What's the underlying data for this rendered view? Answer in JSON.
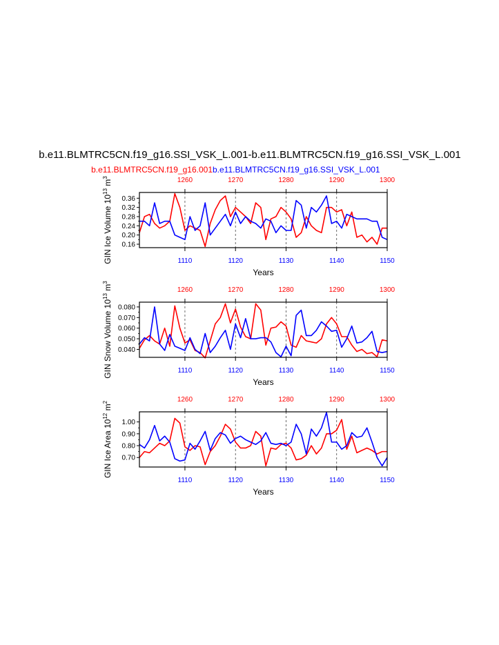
{
  "title": "b.e11.BLMTRC5CN.f19_g16.SSI_VSK_L.001-b.e11.BLMTRC5CN.f19_g16.SSI_VSK_L.001",
  "case_red": "b.e11.BLMTRC5CN.f19_g16.001",
  "case_blue": "b.e11.BLMTRC5CN.f19_g16.SSI_VSK_L.001",
  "colors": {
    "red": "#ff0000",
    "blue": "#0000ff",
    "axis": "#000000"
  },
  "chart_data": [
    {
      "type": "line",
      "ylabel": "GIN Ice Volume 10",
      "ylabel_exp": "13",
      "ylabel_unit": " m",
      "ylabel_unit_exp": "3",
      "xlabel": "Years",
      "xlim_bottom": [
        1101,
        1150
      ],
      "xlim_top": [
        1251,
        1300
      ],
      "ylim": [
        0.145,
        0.385
      ],
      "yticks": [
        0.16,
        0.2,
        0.24,
        0.28,
        0.32,
        0.36
      ],
      "ytick_labels": [
        "0.16",
        "0.20",
        "0.24",
        "0.28",
        "0.32",
        "0.36"
      ],
      "xticks_bottom": [
        "1110",
        "1120",
        "1130",
        "1140",
        "1150"
      ],
      "xticks_top": [
        "1260",
        "1270",
        "1280",
        "1290",
        "1300"
      ],
      "series": [
        {
          "color": "red",
          "x": [
            1101,
            1102,
            1103,
            1104,
            1105,
            1106,
            1107,
            1108,
            1109,
            1110,
            1111,
            1112,
            1113,
            1114,
            1115,
            1116,
            1117,
            1118,
            1119,
            1120,
            1121,
            1122,
            1123,
            1124,
            1125,
            1126,
            1127,
            1128,
            1129,
            1130,
            1131,
            1132,
            1133,
            1134,
            1135,
            1136,
            1137,
            1138,
            1139,
            1140,
            1141,
            1142,
            1143,
            1144,
            1145,
            1146,
            1147,
            1148,
            1149,
            1150
          ],
          "values": [
            0.21,
            0.28,
            0.29,
            0.25,
            0.23,
            0.24,
            0.26,
            0.38,
            0.32,
            0.22,
            0.24,
            0.23,
            0.22,
            0.15,
            0.25,
            0.31,
            0.35,
            0.37,
            0.28,
            0.32,
            0.3,
            0.28,
            0.25,
            0.34,
            0.32,
            0.18,
            0.27,
            0.28,
            0.32,
            0.3,
            0.27,
            0.19,
            0.21,
            0.28,
            0.24,
            0.22,
            0.21,
            0.32,
            0.32,
            0.3,
            0.31,
            0.24,
            0.3,
            0.19,
            0.2,
            0.17,
            0.19,
            0.16,
            0.23,
            0.23
          ]
        },
        {
          "color": "blue",
          "x": [
            1101,
            1102,
            1103,
            1104,
            1105,
            1106,
            1107,
            1108,
            1109,
            1110,
            1111,
            1112,
            1113,
            1114,
            1115,
            1116,
            1117,
            1118,
            1119,
            1120,
            1121,
            1122,
            1123,
            1124,
            1125,
            1126,
            1127,
            1128,
            1129,
            1130,
            1131,
            1132,
            1133,
            1134,
            1135,
            1136,
            1137,
            1138,
            1139,
            1140,
            1141,
            1142,
            1143,
            1144,
            1145,
            1146,
            1147,
            1148,
            1149,
            1150
          ],
          "values": [
            0.26,
            0.26,
            0.24,
            0.34,
            0.25,
            0.26,
            0.26,
            0.2,
            0.19,
            0.18,
            0.28,
            0.22,
            0.24,
            0.34,
            0.2,
            0.23,
            0.26,
            0.29,
            0.24,
            0.3,
            0.25,
            0.28,
            0.26,
            0.25,
            0.23,
            0.27,
            0.26,
            0.21,
            0.24,
            0.22,
            0.22,
            0.35,
            0.33,
            0.23,
            0.32,
            0.3,
            0.33,
            0.37,
            0.25,
            0.26,
            0.23,
            0.29,
            0.28,
            0.27,
            0.27,
            0.27,
            0.26,
            0.26,
            0.19,
            0.18
          ]
        }
      ]
    },
    {
      "type": "line",
      "ylabel": "GIN Snow Volume 10",
      "ylabel_exp": "13",
      "ylabel_unit": " m",
      "ylabel_unit_exp": "3",
      "xlabel": "Years",
      "xlim_bottom": [
        1101,
        1150
      ],
      "xlim_top": [
        1251,
        1300
      ],
      "ylim": [
        0.0325,
        0.0845
      ],
      "yticks": [
        0.04,
        0.05,
        0.06,
        0.07,
        0.08
      ],
      "ytick_labels": [
        "0.040",
        "0.050",
        "0.060",
        "0.070",
        "0.080"
      ],
      "xticks_bottom": [
        "1110",
        "1120",
        "1130",
        "1140",
        "1150"
      ],
      "xticks_top": [
        "1260",
        "1270",
        "1280",
        "1290",
        "1300"
      ],
      "series": [
        {
          "color": "red",
          "x": [
            1101,
            1102,
            1103,
            1104,
            1105,
            1106,
            1107,
            1108,
            1109,
            1110,
            1111,
            1112,
            1113,
            1114,
            1115,
            1116,
            1117,
            1118,
            1119,
            1120,
            1121,
            1122,
            1123,
            1124,
            1125,
            1126,
            1127,
            1128,
            1129,
            1130,
            1131,
            1132,
            1133,
            1134,
            1135,
            1136,
            1137,
            1138,
            1139,
            1140,
            1141,
            1142,
            1143,
            1144,
            1145,
            1146,
            1147,
            1148,
            1149,
            1150
          ],
          "values": [
            0.041,
            0.049,
            0.053,
            0.048,
            0.045,
            0.06,
            0.043,
            0.081,
            0.06,
            0.046,
            0.049,
            0.039,
            0.037,
            0.032,
            0.048,
            0.064,
            0.07,
            0.083,
            0.065,
            0.078,
            0.061,
            0.052,
            0.05,
            0.083,
            0.077,
            0.044,
            0.06,
            0.061,
            0.066,
            0.062,
            0.044,
            0.042,
            0.053,
            0.048,
            0.047,
            0.046,
            0.05,
            0.064,
            0.07,
            0.064,
            0.052,
            0.052,
            0.044,
            0.038,
            0.04,
            0.036,
            0.037,
            0.033,
            0.049,
            0.048
          ]
        },
        {
          "color": "blue",
          "x": [
            1101,
            1102,
            1103,
            1104,
            1105,
            1106,
            1107,
            1108,
            1109,
            1110,
            1111,
            1112,
            1113,
            1114,
            1115,
            1116,
            1117,
            1118,
            1119,
            1120,
            1121,
            1122,
            1123,
            1124,
            1125,
            1126,
            1127,
            1128,
            1129,
            1130,
            1131,
            1132,
            1133,
            1134,
            1135,
            1136,
            1137,
            1138,
            1139,
            1140,
            1141,
            1142,
            1143,
            1144,
            1145,
            1146,
            1147,
            1148,
            1149,
            1150
          ],
          "values": [
            0.045,
            0.051,
            0.048,
            0.08,
            0.045,
            0.039,
            0.054,
            0.043,
            0.041,
            0.039,
            0.051,
            0.04,
            0.036,
            0.055,
            0.037,
            0.043,
            0.051,
            0.058,
            0.04,
            0.064,
            0.051,
            0.069,
            0.05,
            0.05,
            0.051,
            0.051,
            0.047,
            0.037,
            0.033,
            0.043,
            0.034,
            0.072,
            0.077,
            0.053,
            0.053,
            0.058,
            0.066,
            0.062,
            0.057,
            0.058,
            0.042,
            0.05,
            0.062,
            0.046,
            0.047,
            0.051,
            0.057,
            0.038,
            0.037,
            0.038
          ]
        }
      ]
    },
    {
      "type": "line",
      "ylabel": "GIN Ice Area 10",
      "ylabel_exp": "12",
      "ylabel_unit": " m",
      "ylabel_unit_exp": "2",
      "xlabel": "Years",
      "xlim_bottom": [
        1101,
        1150
      ],
      "xlim_top": [
        1251,
        1300
      ],
      "ylim": [
        0.62,
        1.085
      ],
      "yticks": [
        0.7,
        0.8,
        0.9,
        1.0
      ],
      "ytick_labels": [
        "0.70",
        "0.80",
        "0.90",
        "1.00"
      ],
      "xticks_bottom": [
        "1110",
        "1120",
        "1130",
        "1140",
        "1150"
      ],
      "xticks_top": [
        "1260",
        "1270",
        "1280",
        "1290",
        "1300"
      ],
      "series": [
        {
          "color": "red",
          "x": [
            1101,
            1102,
            1103,
            1104,
            1105,
            1106,
            1107,
            1108,
            1109,
            1110,
            1111,
            1112,
            1113,
            1114,
            1115,
            1116,
            1117,
            1118,
            1119,
            1120,
            1121,
            1122,
            1123,
            1124,
            1125,
            1126,
            1127,
            1128,
            1129,
            1130,
            1131,
            1132,
            1133,
            1134,
            1135,
            1136,
            1137,
            1138,
            1139,
            1140,
            1141,
            1142,
            1143,
            1144,
            1145,
            1146,
            1147,
            1148,
            1149,
            1150
          ],
          "values": [
            0.7,
            0.75,
            0.74,
            0.78,
            0.82,
            0.8,
            0.84,
            1.03,
            0.99,
            0.79,
            0.76,
            0.8,
            0.79,
            0.64,
            0.75,
            0.8,
            0.88,
            0.98,
            0.94,
            0.83,
            0.78,
            0.78,
            0.8,
            0.92,
            0.88,
            0.63,
            0.78,
            0.77,
            0.81,
            0.82,
            0.78,
            0.68,
            0.69,
            0.72,
            0.8,
            0.73,
            0.78,
            0.9,
            0.9,
            0.93,
            1.02,
            0.77,
            0.88,
            0.74,
            0.76,
            0.78,
            0.76,
            0.73,
            0.75,
            0.75
          ]
        },
        {
          "color": "blue",
          "x": [
            1101,
            1102,
            1103,
            1104,
            1105,
            1106,
            1107,
            1108,
            1109,
            1110,
            1111,
            1112,
            1113,
            1114,
            1115,
            1116,
            1117,
            1118,
            1119,
            1120,
            1121,
            1122,
            1123,
            1124,
            1125,
            1126,
            1127,
            1128,
            1129,
            1130,
            1131,
            1132,
            1133,
            1134,
            1135,
            1136,
            1137,
            1138,
            1139,
            1140,
            1141,
            1142,
            1143,
            1144,
            1145,
            1146,
            1147,
            1148,
            1149,
            1150
          ],
          "values": [
            0.81,
            0.78,
            0.85,
            0.97,
            0.84,
            0.88,
            0.83,
            0.69,
            0.67,
            0.68,
            0.82,
            0.77,
            0.84,
            0.92,
            0.76,
            0.86,
            0.91,
            0.89,
            0.82,
            0.86,
            0.88,
            0.85,
            0.83,
            0.81,
            0.84,
            0.91,
            0.82,
            0.81,
            0.82,
            0.8,
            0.83,
            0.98,
            0.9,
            0.73,
            0.94,
            0.88,
            0.95,
            1.08,
            0.83,
            0.83,
            0.77,
            0.8,
            0.91,
            0.87,
            0.88,
            0.95,
            0.83,
            0.7,
            0.63,
            0.7
          ]
        }
      ]
    }
  ]
}
